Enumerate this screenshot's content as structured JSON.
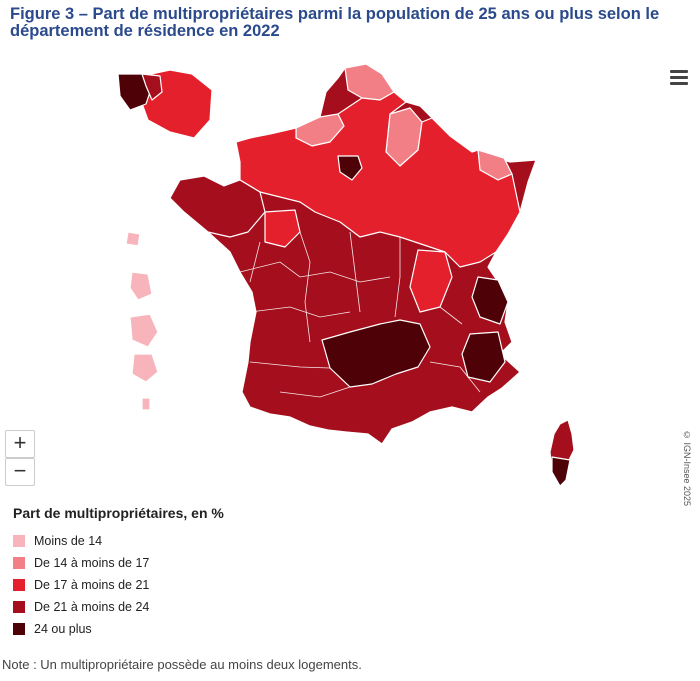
{
  "title": "Figure 3 – Part de multipropriétaires parmi la population de 25 ans ou plus selon le département de résidence en 2022",
  "menu_icon": "hamburger-menu-icon",
  "zoom": {
    "in_label": "+",
    "out_label": "−"
  },
  "credit": "© IGN-Insee 2025",
  "legend": {
    "title": "Part de multipropriétaires, en %",
    "items": [
      {
        "label": "Moins de 14",
        "color": "#f7b5bb"
      },
      {
        "label": "De 14 à moins de 17",
        "color": "#f27f86"
      },
      {
        "label": "De 17 à moins de 21",
        "color": "#e5202d"
      },
      {
        "label": "De 21 à moins de 24",
        "color": "#a50f1d"
      },
      {
        "label": "24 ou plus",
        "color": "#4e0208"
      }
    ]
  },
  "note": "Note : Un multipropriétaire possède au moins deux logements."
}
